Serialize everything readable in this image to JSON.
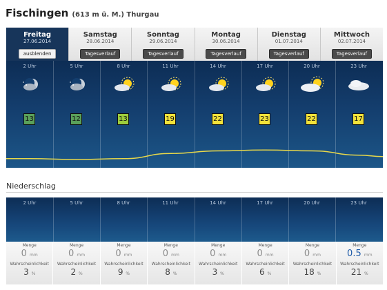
{
  "header": {
    "place": "Fischingen",
    "meta": "(613 m ü. M.) Thurgau"
  },
  "days": [
    {
      "day": "Freitag",
      "date": "27.06.2014",
      "button": "ausblenden",
      "active": true
    },
    {
      "day": "Samstag",
      "date": "28.06.2014",
      "button": "Tagesverlauf",
      "active": false
    },
    {
      "day": "Sonntag",
      "date": "29.06.2014",
      "button": "Tagesverlauf",
      "active": false
    },
    {
      "day": "Montag",
      "date": "30.06.2014",
      "button": "Tagesverlauf",
      "active": false
    },
    {
      "day": "Dienstag",
      "date": "01.07.2014",
      "button": "Tagesverlauf",
      "active": false
    },
    {
      "day": "Mittwoch",
      "date": "02.07.2014",
      "button": "Tagesverlauf",
      "active": false
    }
  ],
  "hours": [
    {
      "time": "2 Uhr",
      "icon": "moon-cloud-icon",
      "temp": "13",
      "color": "#5aa05a"
    },
    {
      "time": "5 Uhr",
      "icon": "moon-cloud-icon",
      "temp": "12",
      "color": "#5aa05a"
    },
    {
      "time": "8 Uhr",
      "icon": "sun-cloud-icon",
      "temp": "13",
      "color": "#9dcc3c"
    },
    {
      "time": "11 Uhr",
      "icon": "sun-cloud-icon",
      "temp": "19",
      "color": "#f2e23a"
    },
    {
      "time": "14 Uhr",
      "icon": "sun-cloud-icon",
      "temp": "22",
      "color": "#f2e23a"
    },
    {
      "time": "17 Uhr",
      "icon": "sun-cloud-icon",
      "temp": "23",
      "color": "#f2e23a"
    },
    {
      "time": "20 Uhr",
      "icon": "sun-cloud-icon",
      "temp": "22",
      "color": "#f2e23a"
    },
    {
      "time": "23 Uhr",
      "icon": "cloud-icon",
      "temp": "17",
      "color": "#f2e23a"
    }
  ],
  "precipitation": {
    "title": "Niederschlag",
    "amount_label": "Menge",
    "prob_label": "Wahrscheinlichkeit",
    "unit_mm": "mm",
    "unit_pct": "%",
    "hours": [
      {
        "time": "2 Uhr",
        "amount": "0",
        "prob": "3"
      },
      {
        "time": "5 Uhr",
        "amount": "0",
        "prob": "2"
      },
      {
        "time": "8 Uhr",
        "amount": "0",
        "prob": "9"
      },
      {
        "time": "11 Uhr",
        "amount": "0",
        "prob": "8"
      },
      {
        "time": "14 Uhr",
        "amount": "0",
        "prob": "3"
      },
      {
        "time": "17 Uhr",
        "amount": "0",
        "prob": "6"
      },
      {
        "time": "20 Uhr",
        "amount": "0",
        "prob": "18"
      },
      {
        "time": "23 Uhr",
        "amount": "0.5",
        "prob": "21"
      }
    ]
  },
  "colors": {
    "panel": "#143e6e",
    "line": "#e8d84a"
  }
}
